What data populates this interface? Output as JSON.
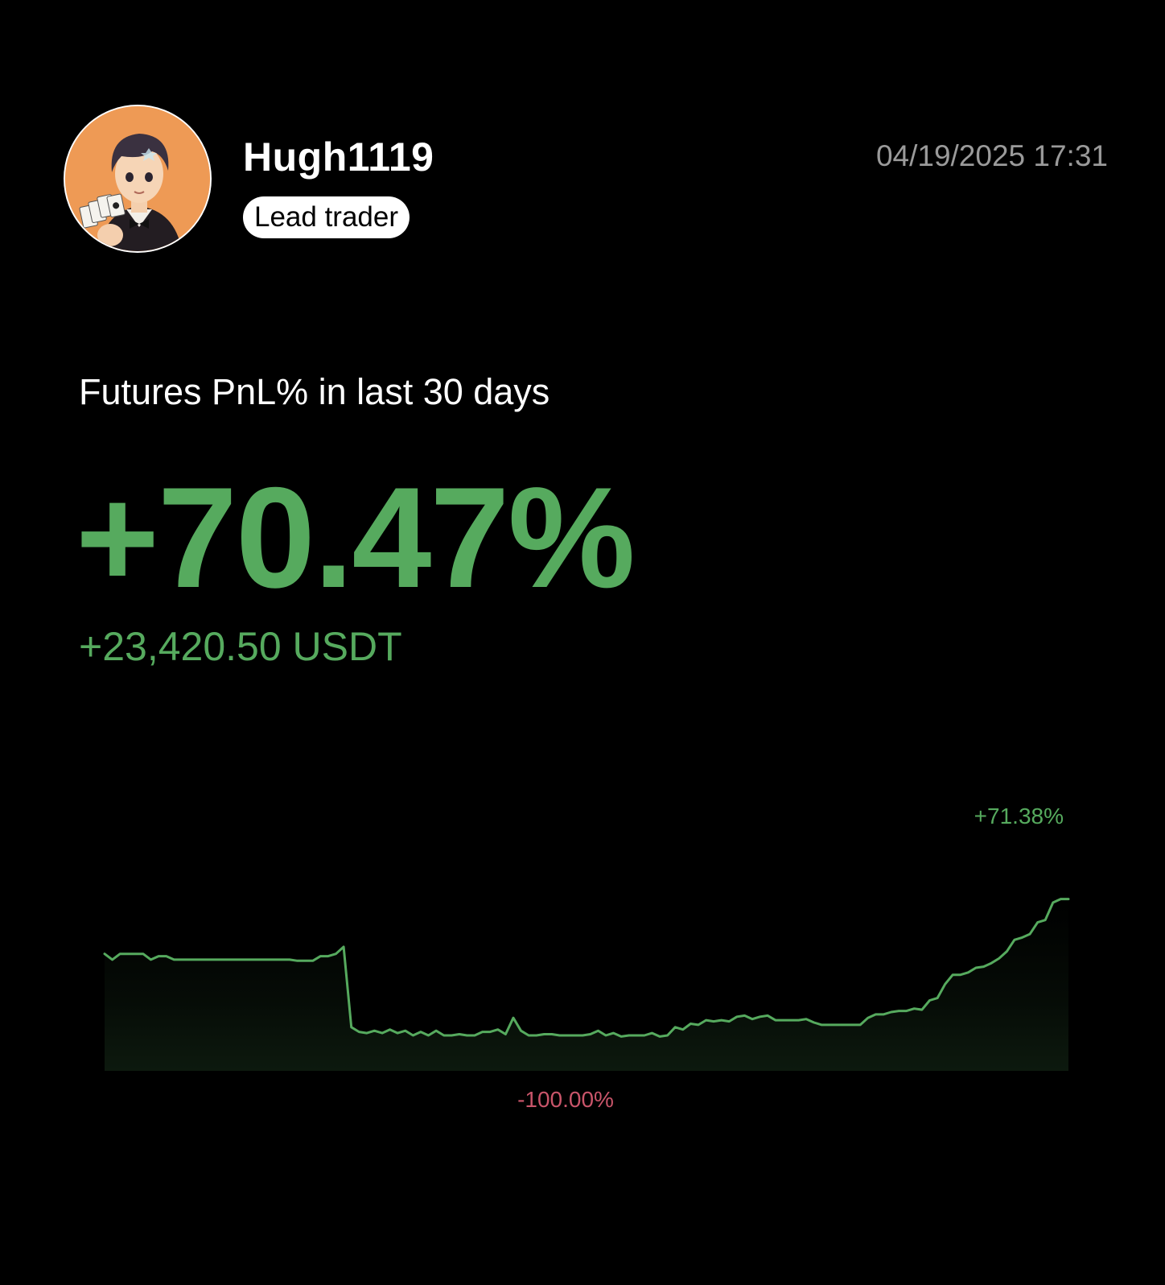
{
  "profile": {
    "username": "Hugh1119",
    "role_badge": "Lead trader",
    "timestamp": "04/19/2025 17:31",
    "avatar_icon": "cartoon-gentleman-holding-playing-cards"
  },
  "summary": {
    "title": "Futures PnL% in last 30 days",
    "pnl_percent": "+70.47%",
    "pnl_amount": "+23,420.50 USDT"
  },
  "colors": {
    "background": "#000000",
    "positive": "#56aa5e",
    "negative": "#c9556a",
    "muted": "#9a9a9a"
  },
  "chart_data": {
    "type": "line",
    "max_label": "+71.38%",
    "min_label": "-100.00%",
    "ylim": [
      -100,
      71.38
    ],
    "y": [
      -12,
      -17,
      -12,
      -12,
      -12,
      -12,
      -17,
      -14,
      -14,
      -17,
      -17,
      -17,
      -17,
      -17,
      -17,
      -17,
      -17,
      -17,
      -17,
      -17,
      -17,
      -17,
      -17,
      -17,
      -17,
      -18,
      -18,
      -18,
      -14,
      -14,
      -12,
      -6,
      -75,
      -79,
      -80,
      -78,
      -80,
      -77,
      -80,
      -78,
      -82,
      -79,
      -82,
      -78,
      -82,
      -82,
      -81,
      -82,
      -82,
      -79,
      -79,
      -77,
      -81,
      -67,
      -78,
      -82,
      -82,
      -81,
      -81,
      -82,
      -82,
      -82,
      -82,
      -81,
      -78,
      -82,
      -80,
      -83,
      -82,
      -82,
      -82,
      -80,
      -83,
      -82,
      -75,
      -77,
      -72,
      -73,
      -69,
      -70,
      -69,
      -70,
      -66,
      -65,
      -68,
      -66,
      -65,
      -69,
      -69,
      -69,
      -69,
      -68,
      -71,
      -73,
      -73,
      -73,
      -73,
      -73,
      -73,
      -67,
      -64,
      -64,
      -62,
      -61,
      -61,
      -59,
      -60,
      -52,
      -50,
      -38,
      -30,
      -30,
      -28,
      -24,
      -23,
      -20,
      -16,
      -10,
      0,
      2,
      5,
      15,
      17,
      32,
      35,
      35
    ]
  }
}
